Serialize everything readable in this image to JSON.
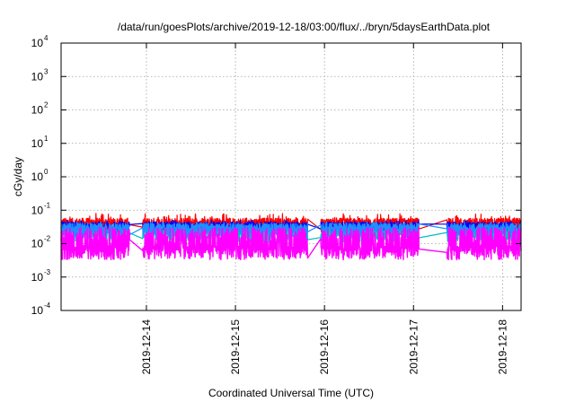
{
  "chart_data": {
    "type": "line",
    "title": "/data/run/goesPlots/archive/2019-12-18/03:00/flux/../bryn/5daysEarthData.plot",
    "xlabel": "Coordinated Universal Time (UTC)",
    "ylabel": "cGy/day",
    "yscale": "log",
    "ylim": [
      0.0001,
      10000
    ],
    "xlim": [
      "2019-12-13T01:00",
      "2019-12-18T05:00"
    ],
    "grid": true,
    "legend": "none",
    "y_ticks": [
      {
        "base": "10",
        "exp": "-4",
        "value": 0.0001
      },
      {
        "base": "10",
        "exp": "-3",
        "value": 0.001
      },
      {
        "base": "10",
        "exp": "-2",
        "value": 0.01
      },
      {
        "base": "10",
        "exp": "-1",
        "value": 0.1
      },
      {
        "base": "10",
        "exp": "0",
        "value": 1
      },
      {
        "base": "10",
        "exp": "1",
        "value": 10
      },
      {
        "base": "10",
        "exp": "2",
        "value": 100
      },
      {
        "base": "10",
        "exp": "3",
        "value": 1000
      },
      {
        "base": "10",
        "exp": "4",
        "value": 10000
      }
    ],
    "x_ticks": [
      {
        "label": "2019-12-14",
        "value": "2019-12-14T00:00"
      },
      {
        "label": "2019-12-15",
        "value": "2019-12-15T00:00"
      },
      {
        "label": "2019-12-16",
        "value": "2019-12-16T00:00"
      },
      {
        "label": "2019-12-17",
        "value": "2019-12-17T00:00"
      },
      {
        "label": "2019-12-18",
        "value": "2019-12-18T00:00"
      }
    ],
    "data_gaps": [
      [
        "2019-12-13T19:30",
        "2019-12-13T23:00"
      ],
      [
        "2019-12-15T19:30",
        "2019-12-15T23:00"
      ],
      [
        "2019-12-17T01:30",
        "2019-12-17T09:00"
      ]
    ],
    "series": [
      {
        "color": "#ff0000",
        "typical": 0.04,
        "spike_max": 0.08
      },
      {
        "color": "#0000ff",
        "typical": 0.03,
        "spike_max": 0.05
      },
      {
        "color": "#00c0c0",
        "typical": 0.02,
        "spike_max": 0.035
      },
      {
        "color": "#1e90ff",
        "typical": 0.028,
        "spike_max": 0.045
      },
      {
        "color": "#ff00ff",
        "typical": 0.006,
        "spike_max": 0.03
      }
    ]
  }
}
